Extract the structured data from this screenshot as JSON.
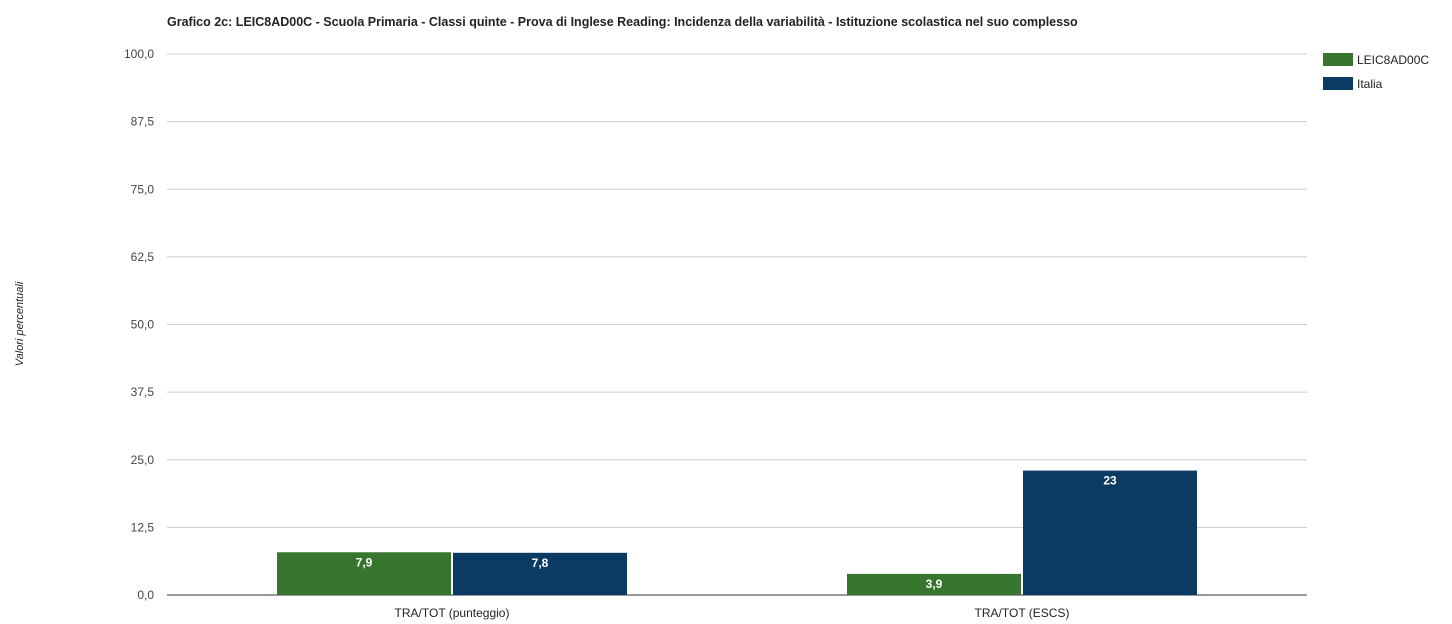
{
  "chart_data": {
    "type": "bar",
    "title": "Grafico 2c: LEIC8AD00C - Scuola Primaria - Classi quinte - Prova di Inglese Reading: Incidenza della variabilità - Istituzione scolastica nel suo complesso",
    "xlabel": "",
    "ylabel": "Valori percentuali",
    "categories": [
      "TRA/TOT (punteggio)",
      "TRA/TOT (ESCS)"
    ],
    "series": [
      {
        "name": "LEIC8AD00C",
        "values": [
          7.9,
          3.9
        ],
        "labels": [
          "7,9",
          "3,9"
        ],
        "color": "#38752f"
      },
      {
        "name": "Italia",
        "values": [
          7.8,
          23
        ],
        "labels": [
          "7,8",
          "23"
        ],
        "color": "#0b3a63"
      }
    ],
    "ylim": [
      0,
      100
    ],
    "yticks": [
      0,
      12.5,
      25,
      37.5,
      50,
      62.5,
      75,
      87.5,
      100
    ],
    "ytick_labels": [
      "0,0",
      "12,5",
      "25,0",
      "37,5",
      "50,0",
      "62,5",
      "75,0",
      "87,5",
      "100,0"
    ],
    "grid": true,
    "legend_position": "top-right"
  }
}
